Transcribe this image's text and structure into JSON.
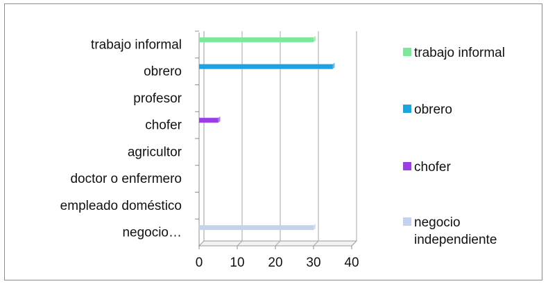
{
  "chart_data": {
    "type": "bar",
    "orientation": "horizontal",
    "title": "",
    "xlabel": "",
    "ylabel": "",
    "categories": [
      "trabajo informal",
      "obrero",
      "profesor",
      "chofer",
      "agricultor",
      "doctor o enfermero",
      "empleado doméstico",
      "negocio…"
    ],
    "series": [
      {
        "name": "trabajo informal",
        "color": "#7ee89a",
        "values": [
          30,
          0,
          0,
          0,
          0,
          0,
          0,
          0
        ]
      },
      {
        "name": "obrero",
        "color": "#1ba3e2",
        "values": [
          0,
          35,
          0,
          0,
          0,
          0,
          0,
          0
        ]
      },
      {
        "name": "chofer",
        "color": "#9b3ee6",
        "values": [
          0,
          0,
          0,
          5,
          0,
          0,
          0,
          0
        ]
      },
      {
        "name": "negocio independiente",
        "color": "#c3d3ec",
        "values": [
          0,
          0,
          0,
          0,
          0,
          0,
          0,
          30
        ]
      }
    ],
    "xlim": [
      0,
      40
    ],
    "xticks": [
      0,
      10,
      20,
      30,
      40
    ],
    "grid": true,
    "legend_position": "right",
    "legend": [
      "trabajo informal",
      "obrero",
      "chofer",
      "negocio independiente"
    ]
  }
}
